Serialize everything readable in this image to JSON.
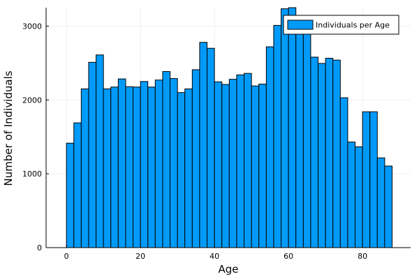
{
  "chart_data": {
    "type": "bar",
    "title": "",
    "xlabel": "Age",
    "ylabel": "Number of Individuals",
    "bin_width": 2,
    "bin_start": 0,
    "x_ticks": [
      0,
      20,
      40,
      60,
      80
    ],
    "y_ticks": [
      0,
      1000,
      2000,
      3000
    ],
    "xlim": [
      -5.5,
      93
    ],
    "ylim": [
      0,
      3250
    ],
    "grid": true,
    "legend_position": "top-right",
    "bar_color": "#009AFA",
    "series": [
      {
        "name": "Individuals per Age",
        "values": [
          1415,
          1690,
          2150,
          2510,
          2610,
          2150,
          2175,
          2285,
          2180,
          2175,
          2250,
          2175,
          2270,
          2385,
          2290,
          2100,
          2150,
          2410,
          2780,
          2700,
          2245,
          2210,
          2280,
          2340,
          2360,
          2190,
          2215,
          2720,
          3010,
          3235,
          3250,
          3140,
          3135,
          2580,
          2495,
          2565,
          2540,
          2030,
          1430,
          1365,
          1840,
          1840,
          1215,
          1105
        ]
      }
    ]
  }
}
